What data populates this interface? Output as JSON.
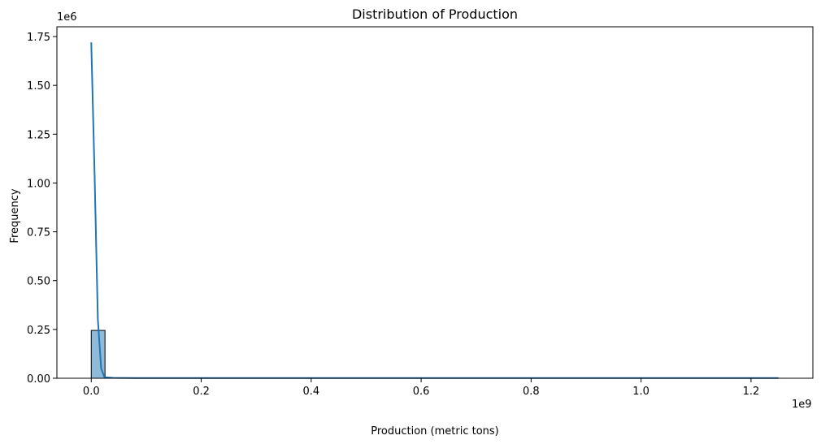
{
  "chart_data": {
    "type": "bar",
    "title": "Distribution of Production",
    "xlabel": "Production (metric tons)",
    "ylabel": "Frequency",
    "x_offset_label": "1e9",
    "y_offset_label": "1e6",
    "xlim": [
      -0.0625,
      1.3125
    ],
    "ylim": [
      0,
      1.8
    ],
    "x_ticks": [
      0.0,
      0.2,
      0.4,
      0.6,
      0.8,
      1.0,
      1.2
    ],
    "x_tick_labels": [
      "0.0",
      "0.2",
      "0.4",
      "0.6",
      "0.8",
      "1.0",
      "1.2"
    ],
    "y_ticks": [
      0.0,
      0.25,
      0.5,
      0.75,
      1.0,
      1.25,
      1.5,
      1.75
    ],
    "y_tick_labels": [
      "0.00",
      "0.25",
      "0.50",
      "0.75",
      "1.00",
      "1.25",
      "1.50",
      "1.75"
    ],
    "histogram": {
      "bin_width": 0.025,
      "bins_start": [
        0.0,
        0.025,
        0.05,
        0.075,
        0.1,
        0.125,
        0.15,
        0.175,
        0.2,
        0.225,
        0.25,
        0.275,
        0.3,
        0.325,
        0.35,
        0.375,
        0.4,
        0.425,
        0.45,
        0.475,
        0.5,
        0.525,
        0.55,
        0.575,
        0.6,
        0.625,
        0.65,
        0.675,
        0.7,
        0.725,
        0.75,
        0.775,
        0.8,
        0.825,
        0.85,
        0.875,
        0.9,
        0.925,
        0.95,
        0.975,
        1.0,
        1.025,
        1.05,
        1.075,
        1.1,
        1.125,
        1.15,
        1.175,
        1.2,
        1.225
      ],
      "counts": [
        0.245,
        0.001,
        0.0005,
        0.0003,
        0.0002,
        0.0002,
        0.0001,
        0.0001,
        0.0001,
        0.0001,
        0.0001,
        0.0001,
        0.0001,
        0.0001,
        0.0001,
        0.0001,
        0.0001,
        0.0001,
        0.0001,
        0.0001,
        0.0001,
        0.0001,
        0.0001,
        0.0001,
        0.0001,
        0.0001,
        0.0001,
        0.0001,
        0.0001,
        0.0001,
        0.0001,
        0.0001,
        0.0001,
        0.0001,
        0.0001,
        0.0001,
        0.0001,
        0.0001,
        0.0001,
        0.0001,
        0.0001,
        0.0001,
        0.0001,
        0.0001,
        0.0001,
        0.0001,
        0.0001,
        0.0001,
        0.0001,
        0.0001
      ]
    },
    "kde": {
      "x": [
        0.0,
        0.006,
        0.012,
        0.018,
        0.024,
        0.04,
        0.08,
        0.2,
        0.4,
        0.6,
        0.8,
        1.0,
        1.2,
        1.25
      ],
      "y": [
        1.72,
        1.05,
        0.3,
        0.05,
        0.005,
        0.002,
        0.001,
        0.001,
        0.001,
        0.001,
        0.001,
        0.001,
        0.001,
        0.001
      ]
    },
    "grid": false,
    "colors": {
      "bar_fill": "#1f77b4",
      "bar_fill_opacity": 0.5,
      "bar_edge": "#000000",
      "kde_line": "#1f77b4",
      "axes": "#000000"
    }
  }
}
